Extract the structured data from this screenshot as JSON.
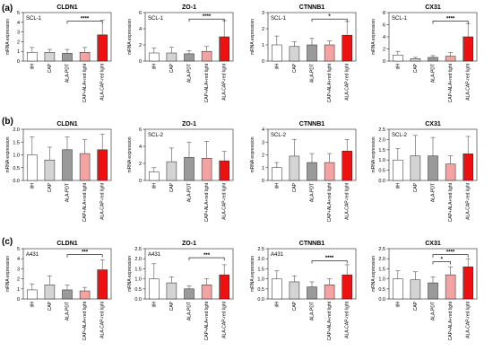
{
  "colors": {
    "dH": "#ffffff",
    "CAP": "#d4d4d4",
    "ALA-PDT": "#9a9a9a",
    "CAP+ALA+red light": "#f4a3a3",
    "ALA-CAP-red light": "#ee1111",
    "axis": "#222222",
    "error": "#555555"
  },
  "rows": [
    {
      "label": "(a)",
      "cell_line": "SCL-1"
    },
    {
      "label": "(b)",
      "cell_line": "SCL-2"
    },
    {
      "label": "(c)",
      "cell_line": "A431"
    }
  ],
  "chart_data": [
    {
      "type": "bar",
      "row": 0,
      "col": 0,
      "title": "CLDN1",
      "annotation": "SCL-1",
      "ylabel": "mRNA expression",
      "categories": [
        "dH",
        "CAP",
        "ALA-PDT",
        "CAP+ALA+red light",
        "ALA-CAP-red light"
      ],
      "values": [
        0.9,
        0.9,
        0.8,
        0.9,
        2.7
      ],
      "errors": [
        0.5,
        0.3,
        0.4,
        0.5,
        1.5
      ],
      "ylim": [
        0,
        5
      ],
      "yticks": [
        0,
        1,
        2,
        3,
        4,
        5
      ],
      "ytick_labels": [
        "0",
        "1",
        "2",
        "3",
        "4",
        "5"
      ],
      "significance": [
        {
          "from": 2,
          "to": 4,
          "label": "****",
          "level": 4.1
        }
      ]
    },
    {
      "type": "bar",
      "row": 0,
      "col": 1,
      "title": "ZO-1",
      "annotation": "SCL-1",
      "ylabel": "mRNA expression",
      "categories": [
        "dH",
        "CAP",
        "ALA-PDT",
        "CAP+ALA+red light",
        "ALA-CAP-red light"
      ],
      "values": [
        1.0,
        1.0,
        0.9,
        1.2,
        3.0
      ],
      "errors": [
        0.6,
        0.7,
        0.4,
        0.6,
        2.0
      ],
      "ylim": [
        0,
        6
      ],
      "yticks": [
        0,
        2,
        4,
        6
      ],
      "ytick_labels": [
        "0",
        "2",
        "4",
        "6"
      ],
      "significance": [
        {
          "from": 2,
          "to": 4,
          "label": "****",
          "level": 5.2
        }
      ]
    },
    {
      "type": "bar",
      "row": 0,
      "col": 2,
      "title": "CTNNB1",
      "annotation": "SCL-1",
      "ylabel": "mRNA expression",
      "categories": [
        "dH",
        "CAP",
        "ALA-PDT",
        "CAP+ALA+red light",
        "ALA-CAP-red light"
      ],
      "values": [
        1.0,
        0.9,
        1.0,
        1.0,
        1.6
      ],
      "errors": [
        0.55,
        0.3,
        0.4,
        0.25,
        0.85
      ],
      "ylim": [
        0,
        3
      ],
      "yticks": [
        0,
        1,
        2,
        3
      ],
      "ytick_labels": [
        "0",
        "1",
        "2",
        "3"
      ],
      "significance": [
        {
          "from": 2,
          "to": 4,
          "label": "*",
          "level": 2.6
        }
      ]
    },
    {
      "type": "bar",
      "row": 0,
      "col": 3,
      "title": "CX31",
      "annotation": "SCL-1",
      "ylabel": "mRNA expression",
      "categories": [
        "dH",
        "CAP",
        "ALA-PDT",
        "CAP+ALA+red light",
        "ALA-CAP-red light"
      ],
      "values": [
        1.0,
        0.4,
        0.6,
        0.8,
        4.0
      ],
      "errors": [
        0.6,
        0.2,
        0.3,
        0.6,
        2.2
      ],
      "ylim": [
        0,
        8
      ],
      "yticks": [
        0,
        2,
        4,
        6,
        8
      ],
      "ytick_labels": [
        "0",
        "2",
        "4",
        "6",
        "8"
      ],
      "significance": [
        {
          "from": 2,
          "to": 4,
          "label": "****",
          "level": 6.6
        }
      ]
    },
    {
      "type": "bar",
      "row": 1,
      "col": 0,
      "title": "CLDN1",
      "annotation": "",
      "ylabel": "mRNA expression",
      "categories": [
        "dH",
        "CAP",
        "ALA-PDT",
        "CAP+ALA+red light",
        "ALA-CAP-red light"
      ],
      "values": [
        1.0,
        0.8,
        1.2,
        1.05,
        1.2
      ],
      "errors": [
        0.7,
        0.5,
        0.5,
        0.55,
        0.6
      ],
      "ylim": [
        0,
        2.0
      ],
      "yticks": [
        0,
        0.5,
        1.0,
        1.5,
        2.0
      ],
      "ytick_labels": [
        "0.0",
        "0.5",
        "1.0",
        "1.5",
        "2.0"
      ],
      "significance": []
    },
    {
      "type": "bar",
      "row": 1,
      "col": 1,
      "title": "ZO-1",
      "annotation": "SCL-2",
      "ylabel": "mRNA expression",
      "categories": [
        "dH",
        "CAP",
        "ALA-PDT",
        "CAP+ALA+red light",
        "ALA-CAP-red light"
      ],
      "values": [
        1.0,
        2.2,
        2.7,
        2.6,
        2.3
      ],
      "errors": [
        0.5,
        1.6,
        1.8,
        2.0,
        1.1
      ],
      "ylim": [
        0,
        6
      ],
      "yticks": [
        0,
        2,
        4,
        6
      ],
      "ytick_labels": [
        "0",
        "2",
        "4",
        "6"
      ],
      "significance": []
    },
    {
      "type": "bar",
      "row": 1,
      "col": 2,
      "title": "CTNNB1",
      "annotation": "SCL-2",
      "ylabel": "mRNA expression",
      "categories": [
        "dH",
        "CAP",
        "ALA-PDT",
        "CAP+ALA+red light",
        "ALA-CAP-red light"
      ],
      "values": [
        1.0,
        1.9,
        1.4,
        1.4,
        2.3
      ],
      "errors": [
        0.4,
        1.3,
        0.7,
        0.7,
        0.9
      ],
      "ylim": [
        0,
        4
      ],
      "yticks": [
        0,
        1,
        2,
        3,
        4
      ],
      "ytick_labels": [
        "0",
        "1",
        "2",
        "3",
        "4"
      ],
      "significance": []
    },
    {
      "type": "bar",
      "row": 1,
      "col": 3,
      "title": "CX31",
      "annotation": "SCL-2",
      "ylabel": "mRNA expression",
      "categories": [
        "dH",
        "CAP",
        "ALA-PDT",
        "CAP+ALA+red light",
        "ALA-CAP-red light"
      ],
      "values": [
        1.0,
        1.2,
        1.2,
        0.8,
        1.3
      ],
      "errors": [
        0.55,
        1.0,
        0.9,
        0.4,
        0.85
      ],
      "ylim": [
        0,
        2.5
      ],
      "yticks": [
        0,
        0.5,
        1.0,
        1.5,
        2.0,
        2.5
      ],
      "ytick_labels": [
        "0.0",
        "0.5",
        "1.0",
        "1.5",
        "2.0",
        "2.5"
      ],
      "significance": []
    },
    {
      "type": "bar",
      "row": 2,
      "col": 0,
      "title": "CLDN1",
      "annotation": "A431",
      "ylabel": "mRNA expression",
      "categories": [
        "dH",
        "CAP",
        "ALA-PDT",
        "CAP+ALA+red light",
        "ALA-CAP-red light"
      ],
      "values": [
        0.9,
        1.4,
        0.9,
        0.8,
        2.9
      ],
      "errors": [
        0.6,
        0.9,
        0.5,
        0.35,
        1.0
      ],
      "ylim": [
        0,
        5
      ],
      "yticks": [
        0,
        1,
        2,
        3,
        4,
        5
      ],
      "ytick_labels": [
        "0",
        "1",
        "2",
        "3",
        "4",
        "5"
      ],
      "significance": [
        {
          "from": 2,
          "to": 4,
          "label": "***",
          "level": 4.4
        }
      ]
    },
    {
      "type": "bar",
      "row": 2,
      "col": 1,
      "title": "ZO-1",
      "annotation": "A431",
      "ylabel": "mRNA expression",
      "categories": [
        "dH",
        "CAP",
        "ALA-PDT",
        "CAP+ALA+red light",
        "ALA-CAP-red light"
      ],
      "values": [
        1.0,
        0.8,
        0.5,
        0.7,
        1.2
      ],
      "errors": [
        0.75,
        0.3,
        0.15,
        0.3,
        0.5
      ],
      "ylim": [
        0,
        2.5
      ],
      "yticks": [
        0,
        0.5,
        1.0,
        1.5,
        2.0,
        2.5
      ],
      "ytick_labels": [
        "0.0",
        "0.5",
        "1.0",
        "1.5",
        "2.0",
        "2.5"
      ],
      "significance": [
        {
          "from": 2,
          "to": 4,
          "label": "***",
          "level": 2.05
        }
      ]
    },
    {
      "type": "bar",
      "row": 2,
      "col": 2,
      "title": "CTNNB1",
      "annotation": "A431",
      "ylabel": "mRNA expression",
      "categories": [
        "dH",
        "CAP",
        "ALA-PDT",
        "CAP+ALA+red light",
        "ALA-CAP-red light"
      ],
      "values": [
        1.0,
        0.85,
        0.6,
        0.7,
        1.2
      ],
      "errors": [
        0.4,
        0.3,
        0.25,
        0.3,
        0.5
      ],
      "ylim": [
        0,
        2.5
      ],
      "yticks": [
        0,
        0.5,
        1.0,
        1.5,
        2.0,
        2.5
      ],
      "ytick_labels": [
        "0.0",
        "0.5",
        "1.0",
        "1.5",
        "2.0",
        "2.5"
      ],
      "significance": [
        {
          "from": 2,
          "to": 4,
          "label": "****",
          "level": 1.9
        }
      ]
    },
    {
      "type": "bar",
      "row": 2,
      "col": 3,
      "title": "CX31",
      "annotation": "",
      "ylabel": "mRNA expression",
      "categories": [
        "dH",
        "CAP",
        "ALA-PDT",
        "CAP+ALA+red light",
        "ALA-CAP-red light"
      ],
      "values": [
        1.0,
        0.95,
        0.8,
        1.2,
        1.6
      ],
      "errors": [
        0.4,
        0.4,
        0.3,
        0.4,
        0.4
      ],
      "ylim": [
        0,
        2.5
      ],
      "yticks": [
        0,
        0.5,
        1.0,
        1.5,
        2.0,
        2.5
      ],
      "ytick_labels": [
        "0.0",
        "0.5",
        "1.0",
        "1.5",
        "2.0",
        "2.5"
      ],
      "significance": [
        {
          "from": 2,
          "to": 3,
          "label": "*",
          "level": 1.85
        },
        {
          "from": 2,
          "to": 4,
          "label": "****",
          "level": 2.2
        }
      ]
    }
  ]
}
